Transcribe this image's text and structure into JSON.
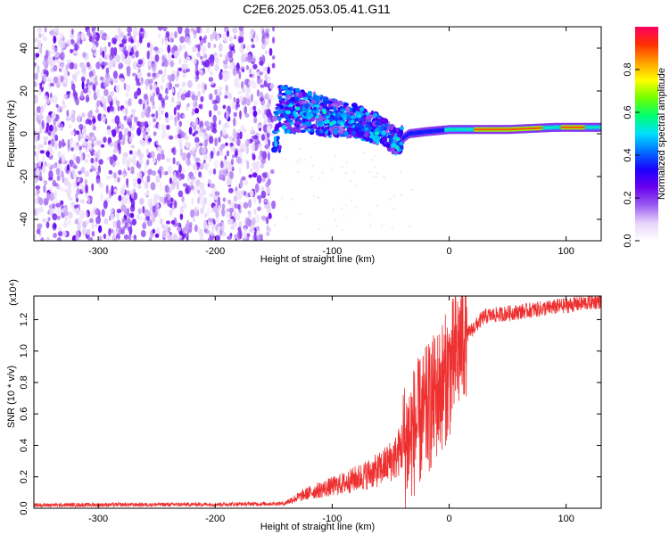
{
  "title": "C2E6.2025.053.05.41.G11",
  "chart_data": [
    {
      "type": "heatmap",
      "name": "spectrogram",
      "xlabel": "Height of straight line (km)",
      "ylabel": "Frequency (Hz)",
      "xlim": [
        -355,
        130
      ],
      "ylim": [
        -50,
        50
      ],
      "x_ticks": [
        -300,
        -200,
        -100,
        0,
        100
      ],
      "y_ticks": [
        -40,
        -20,
        0,
        20,
        40
      ],
      "colorbar": {
        "label": "Normalized spectral amplitude",
        "range": [
          0,
          1
        ],
        "ticks": [
          0.0,
          0.2,
          0.4,
          0.6,
          0.8
        ],
        "tick_labels": [
          "0.0",
          "0.2",
          "0.4",
          "0.6",
          "0.8"
        ],
        "colors": [
          "#ffffff",
          "#e6d4fa",
          "#9a5bf0",
          "#6a00f0",
          "#1c00ff",
          "#0070ff",
          "#00e0ff",
          "#00ff70",
          "#70ff00",
          "#ffff00",
          "#ffa000",
          "#ff3000",
          "#ff0060"
        ]
      },
      "features": {
        "noise_region_x": [
          -355,
          -150
        ],
        "signal_ridge": [
          {
            "x": -145,
            "y": 12
          },
          {
            "x": -120,
            "y": 10
          },
          {
            "x": -100,
            "y": 7
          },
          {
            "x": -80,
            "y": 6
          },
          {
            "x": -60,
            "y": 2
          },
          {
            "x": -45,
            "y": -4
          },
          {
            "x": -35,
            "y": 0
          },
          {
            "x": -20,
            "y": 1
          },
          {
            "x": 0,
            "y": 2
          },
          {
            "x": 50,
            "y": 2
          },
          {
            "x": 90,
            "y": 3
          },
          {
            "x": 130,
            "y": 3
          }
        ]
      }
    },
    {
      "type": "line",
      "name": "snr",
      "xlabel": "Height of straight line (km)",
      "ylabel": "SNR (10 * v/v)",
      "scale_label": "(x10⁴)",
      "xlim": [
        -355,
        130
      ],
      "ylim": [
        0,
        1.35
      ],
      "x_ticks": [
        -300,
        -200,
        -100,
        0,
        100
      ],
      "y_ticks": [
        0.0,
        0.2,
        0.4,
        0.6,
        0.8,
        1.0,
        1.2
      ],
      "y_tick_labels": [
        "0.0",
        "0.2",
        "0.4",
        "0.6",
        "0.8",
        "1.0",
        "1.2"
      ],
      "color": "#ee3030",
      "trend": [
        {
          "x": -355,
          "y": 0.02
        },
        {
          "x": -200,
          "y": 0.025
        },
        {
          "x": -140,
          "y": 0.03
        },
        {
          "x": -120,
          "y": 0.08
        },
        {
          "x": -90,
          "y": 0.13
        },
        {
          "x": -60,
          "y": 0.2
        },
        {
          "x": -45,
          "y": 0.27
        },
        {
          "x": -30,
          "y": 0.45
        },
        {
          "x": -15,
          "y": 0.62
        },
        {
          "x": 0,
          "y": 0.82
        },
        {
          "x": 15,
          "y": 1.1
        },
        {
          "x": 30,
          "y": 1.22
        },
        {
          "x": 60,
          "y": 1.25
        },
        {
          "x": 90,
          "y": 1.28
        },
        {
          "x": 130,
          "y": 1.32
        }
      ]
    }
  ]
}
